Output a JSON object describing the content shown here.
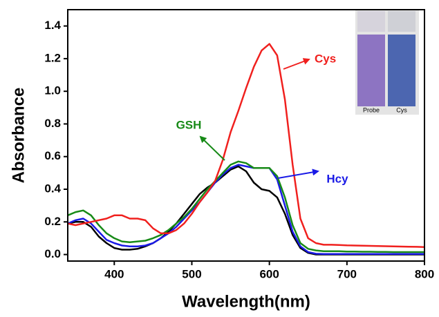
{
  "chart_data": {
    "type": "line",
    "x_label": "Wavelength(nm)",
    "y_label": "Absorbance",
    "x": [
      340,
      350,
      360,
      370,
      380,
      390,
      400,
      410,
      420,
      430,
      440,
      450,
      460,
      470,
      480,
      490,
      500,
      510,
      520,
      530,
      540,
      550,
      560,
      570,
      580,
      590,
      600,
      610,
      620,
      630,
      640,
      650,
      660,
      670,
      680,
      690,
      700,
      710,
      720,
      730,
      740,
      750,
      760,
      770,
      780,
      790,
      800
    ],
    "series": [
      {
        "color": "#000000",
        "values": [
          0.19,
          0.2,
          0.2,
          0.17,
          0.11,
          0.07,
          0.04,
          0.03,
          0.03,
          0.035,
          0.05,
          0.07,
          0.1,
          0.14,
          0.19,
          0.25,
          0.31,
          0.37,
          0.41,
          0.44,
          0.48,
          0.52,
          0.54,
          0.51,
          0.44,
          0.4,
          0.39,
          0.35,
          0.25,
          0.12,
          0.04,
          0.01,
          0,
          0,
          0,
          0,
          0,
          0,
          0,
          0,
          0,
          0,
          0,
          0,
          0,
          0,
          0
        ]
      },
      {
        "name": "Hcy",
        "color": "#1a1ae6",
        "values": [
          0.19,
          0.21,
          0.22,
          0.19,
          0.14,
          0.09,
          0.07,
          0.055,
          0.05,
          0.05,
          0.055,
          0.07,
          0.1,
          0.13,
          0.17,
          0.22,
          0.27,
          0.32,
          0.38,
          0.44,
          0.49,
          0.53,
          0.55,
          0.54,
          0.53,
          0.53,
          0.53,
          0.46,
          0.3,
          0.14,
          0.05,
          0.015,
          0.005,
          0.003,
          0.003,
          0.003,
          0.003,
          0.003,
          0.003,
          0.003,
          0.003,
          0.003,
          0.003,
          0.003,
          0.003,
          0.003,
          0.003
        ]
      },
      {
        "name": "GSH",
        "color": "#178a17",
        "values": [
          0.24,
          0.26,
          0.27,
          0.24,
          0.18,
          0.13,
          0.1,
          0.08,
          0.075,
          0.08,
          0.085,
          0.1,
          0.12,
          0.15,
          0.19,
          0.23,
          0.28,
          0.34,
          0.4,
          0.45,
          0.5,
          0.55,
          0.57,
          0.56,
          0.53,
          0.53,
          0.53,
          0.48,
          0.35,
          0.18,
          0.07,
          0.035,
          0.025,
          0.02,
          0.02,
          0.02,
          0.018,
          0.018,
          0.017,
          0.017,
          0.016,
          0.016,
          0.015,
          0.015,
          0.015,
          0.015,
          0.015
        ]
      },
      {
        "name": "Cys",
        "color": "#f0201e",
        "values": [
          0.19,
          0.18,
          0.19,
          0.2,
          0.21,
          0.22,
          0.24,
          0.24,
          0.22,
          0.22,
          0.21,
          0.16,
          0.13,
          0.13,
          0.15,
          0.19,
          0.25,
          0.32,
          0.38,
          0.45,
          0.58,
          0.75,
          0.88,
          1.02,
          1.15,
          1.25,
          1.29,
          1.22,
          0.95,
          0.55,
          0.22,
          0.1,
          0.07,
          0.06,
          0.06,
          0.058,
          0.056,
          0.055,
          0.054,
          0.053,
          0.052,
          0.051,
          0.05,
          0.049,
          0.048,
          0.047,
          0.046
        ]
      }
    ],
    "xlim": [
      340,
      800
    ],
    "xticks": [
      400,
      500,
      600,
      700,
      800
    ],
    "ylim": [
      -0.04,
      1.5
    ],
    "yticks": [
      {
        "value": 0,
        "label": "0.0"
      },
      {
        "value": 0.2,
        "label": "0.2"
      },
      {
        "value": 0.4,
        "label": "0.4"
      },
      {
        "value": 0.6,
        "label": "0.6"
      },
      {
        "value": 0.8,
        "label": "0.8"
      },
      {
        "value": 1.0,
        "label": "1.0"
      },
      {
        "value": 1.2,
        "label": "1.2"
      },
      {
        "value": 1.4,
        "label": "1.4"
      }
    ],
    "annotations": [
      {
        "text": "Cys",
        "color": "#f0201e"
      },
      {
        "text": "GSH",
        "color": "#178a17"
      },
      {
        "text": "Hcy",
        "color": "#1a1ae6"
      }
    ]
  },
  "inset": {
    "labels": [
      "Probe",
      "Cys"
    ]
  }
}
